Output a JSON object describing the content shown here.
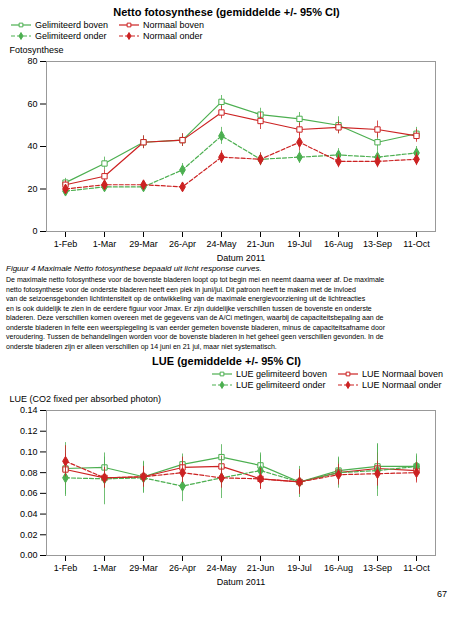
{
  "chart_data": [
    {
      "type": "line",
      "title": "Netto fotosynthese (gemiddelde +/- 95% CI)",
      "x_label": "Datum 2011",
      "y_label": "Fotosynthese",
      "categories": [
        "1-Feb",
        "1-Mar",
        "29-Mar",
        "26-Apr",
        "24-May",
        "21-Jun",
        "19-Jul",
        "16-Aug",
        "13-Sep",
        "11-Oct"
      ],
      "ylim": [
        0,
        80
      ],
      "yticks": [
        0,
        20,
        40,
        60,
        80
      ],
      "legend": "upper left",
      "grid": false,
      "caption": "Figuur 4 Maximale Netto fotosynthese bepaald uit licht response curves.",
      "series": [
        {
          "name": "Gelimiteerd boven",
          "color": "#4CAF50",
          "line_style": "solid",
          "marker": "open-square",
          "values": [
            23,
            32,
            42,
            43,
            61,
            55,
            53,
            50,
            42,
            46
          ],
          "errors": [
            2,
            3,
            3,
            3,
            3,
            3,
            3,
            4,
            4,
            3
          ]
        },
        {
          "name": "Normaal boven",
          "color": "#CC2222",
          "line_style": "solid",
          "marker": "open-square",
          "values": [
            22,
            26,
            42,
            43,
            56,
            52,
            48,
            49,
            48,
            45
          ],
          "errors": [
            2,
            3,
            3,
            3,
            3,
            4,
            3,
            3,
            4,
            3
          ]
        },
        {
          "name": "Gelimiteerd onder",
          "color": "#4CAF50",
          "line_style": "dashed",
          "marker": "diamond",
          "values": [
            19,
            21,
            21,
            29,
            45,
            34,
            35,
            36,
            35,
            37
          ],
          "errors": [
            2,
            2,
            2,
            3,
            4,
            3,
            3,
            3,
            3,
            3
          ]
        },
        {
          "name": "Normaal onder",
          "color": "#CC2222",
          "line_style": "dashed",
          "marker": "diamond",
          "values": [
            20,
            22,
            22,
            21,
            35,
            34,
            42,
            33,
            33,
            34
          ],
          "errors": [
            2,
            2,
            2,
            2,
            3,
            3,
            4,
            3,
            3,
            3
          ]
        }
      ]
    },
    {
      "type": "line",
      "title": "LUE (gemiddelde +/- 95% CI)",
      "x_label": "Datum 2011",
      "y_label": "LUE (CO2 fixed per absorbed photon)",
      "categories": [
        "1-Feb",
        "1-Mar",
        "29-Mar",
        "26-Apr",
        "24-May",
        "21-Jun",
        "19-Jul",
        "16-Aug",
        "13-Sep",
        "11-Oct"
      ],
      "ylim": [
        0.0,
        0.14
      ],
      "yticks": [
        {
          "value": 0.0,
          "label": "0.00"
        },
        {
          "value": 0.02,
          "label": "0.02"
        },
        {
          "value": 0.04,
          "label": "0.04"
        },
        {
          "value": 0.06,
          "label": "0.06"
        },
        {
          "value": 0.08,
          "label": "0.08"
        },
        {
          "value": 0.1,
          "label": "0.10"
        },
        {
          "value": 0.12,
          "label": "0.12"
        },
        {
          "value": 0.14,
          "label": "0.14"
        }
      ],
      "legend": "upper right",
      "grid": false,
      "series": [
        {
          "name": "LUE gelimiteerd boven",
          "color": "#4CAF50",
          "line_style": "solid",
          "marker": "open-square",
          "values": [
            0.084,
            0.085,
            0.076,
            0.088,
            0.095,
            0.087,
            0.071,
            0.082,
            0.086,
            0.086
          ],
          "errors": [
            0.025,
            0.01,
            0.015,
            0.01,
            0.012,
            0.012,
            0.01,
            0.012,
            0.022,
            0.01
          ]
        },
        {
          "name": "LUE Normaal boven",
          "color": "#CC2222",
          "line_style": "solid",
          "marker": "open-square",
          "values": [
            0.083,
            0.075,
            0.076,
            0.085,
            0.086,
            0.074,
            0.071,
            0.08,
            0.084,
            0.082
          ],
          "errors": [
            0.015,
            0.01,
            0.01,
            0.01,
            0.01,
            0.01,
            0.01,
            0.01,
            0.015,
            0.01
          ]
        },
        {
          "name": "LUE gelimiteerd onder",
          "color": "#4CAF50",
          "line_style": "dashed",
          "marker": "diamond",
          "values": [
            0.075,
            0.074,
            0.075,
            0.067,
            0.075,
            0.082,
            0.071,
            0.08,
            0.082,
            0.086
          ],
          "errors": [
            0.018,
            0.025,
            0.015,
            0.015,
            0.02,
            0.015,
            0.015,
            0.015,
            0.025,
            0.012
          ]
        },
        {
          "name": "LUE Normaal onder",
          "color": "#CC2222",
          "line_style": "dashed",
          "marker": "diamond",
          "values": [
            0.091,
            0.075,
            0.076,
            0.08,
            0.075,
            0.074,
            0.071,
            0.078,
            0.079,
            0.08
          ],
          "errors": [
            0.015,
            0.01,
            0.01,
            0.01,
            0.01,
            0.01,
            0.012,
            0.01,
            0.012,
            0.01
          ]
        }
      ]
    }
  ],
  "body_text": [
    "De maximale netto fotosynthese voor de bovenste bladeren loopt op tot begin mei en neemt daarna weer af. De maximale",
    "netto fotosynthese voor de onderste bladeren heeft een piek in juni/jul. Dit patroon heeft te maken met de invloed",
    "van de seizoensgebonden lichtintensiteit op de ontwikkeling van de maximale energievoorziening uit de lichtreacties",
    "en is ook duidelijk te zien in de eerdere figuur voor Jmax. Er zijn duidelijke verschillen tussen de bovenste en onderste",
    "bladeren. Deze verschillen komen overeen met de gegevens van de A/Ci metingen, waarbij de capaciteitsbepaling aan de",
    "onderste bladeren in feite een weerspiegeling is van eerder gemeten bovenste bladeren, minus de capaciteitsafname door",
    "veroudering. Tussen de behandelingen worden voor de bovenste bladeren in het geheel geen verschillen gevonden. In de",
    "onderste bladeren zijn er alleen verschillen op 14 juni en 21 jul, maar niet systematisch."
  ],
  "page_number": "67"
}
